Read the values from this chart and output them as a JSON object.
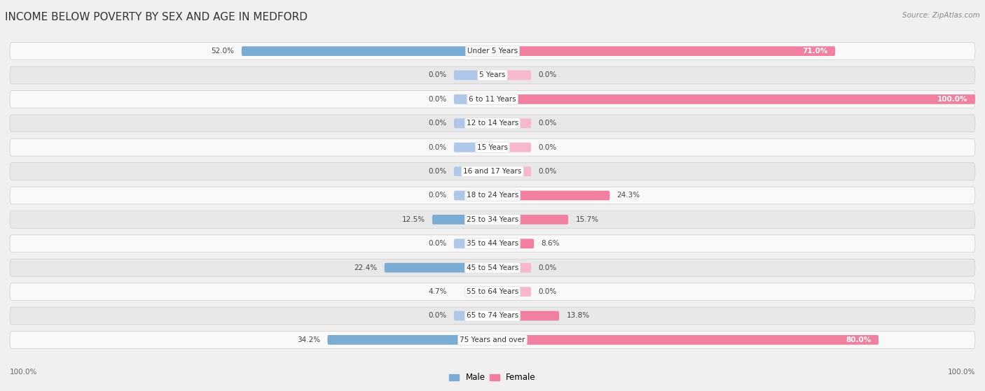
{
  "title": "INCOME BELOW POVERTY BY SEX AND AGE IN MEDFORD",
  "source": "Source: ZipAtlas.com",
  "categories": [
    "Under 5 Years",
    "5 Years",
    "6 to 11 Years",
    "12 to 14 Years",
    "15 Years",
    "16 and 17 Years",
    "18 to 24 Years",
    "25 to 34 Years",
    "35 to 44 Years",
    "45 to 54 Years",
    "55 to 64 Years",
    "65 to 74 Years",
    "75 Years and over"
  ],
  "male": [
    52.0,
    0.0,
    0.0,
    0.0,
    0.0,
    0.0,
    0.0,
    12.5,
    0.0,
    22.4,
    4.7,
    0.0,
    34.2
  ],
  "female": [
    71.0,
    0.0,
    100.0,
    0.0,
    0.0,
    0.0,
    24.3,
    15.7,
    8.6,
    0.0,
    0.0,
    13.8,
    80.0
  ],
  "male_color": "#7bacd4",
  "female_color": "#f07fa0",
  "male_color_light": "#adc8e8",
  "female_color_light": "#f5b8cc",
  "male_label": "Male",
  "female_label": "Female",
  "axis_limit": 100.0,
  "axis_label_left": "100.0%",
  "axis_label_right": "100.0%",
  "bg_color": "#f0f0f0",
  "row_bg_white": "#f9f9f9",
  "row_bg_gray": "#e8e8e8",
  "title_fontsize": 11,
  "label_fontsize": 7.5,
  "category_fontsize": 7.5,
  "source_fontsize": 7.5
}
